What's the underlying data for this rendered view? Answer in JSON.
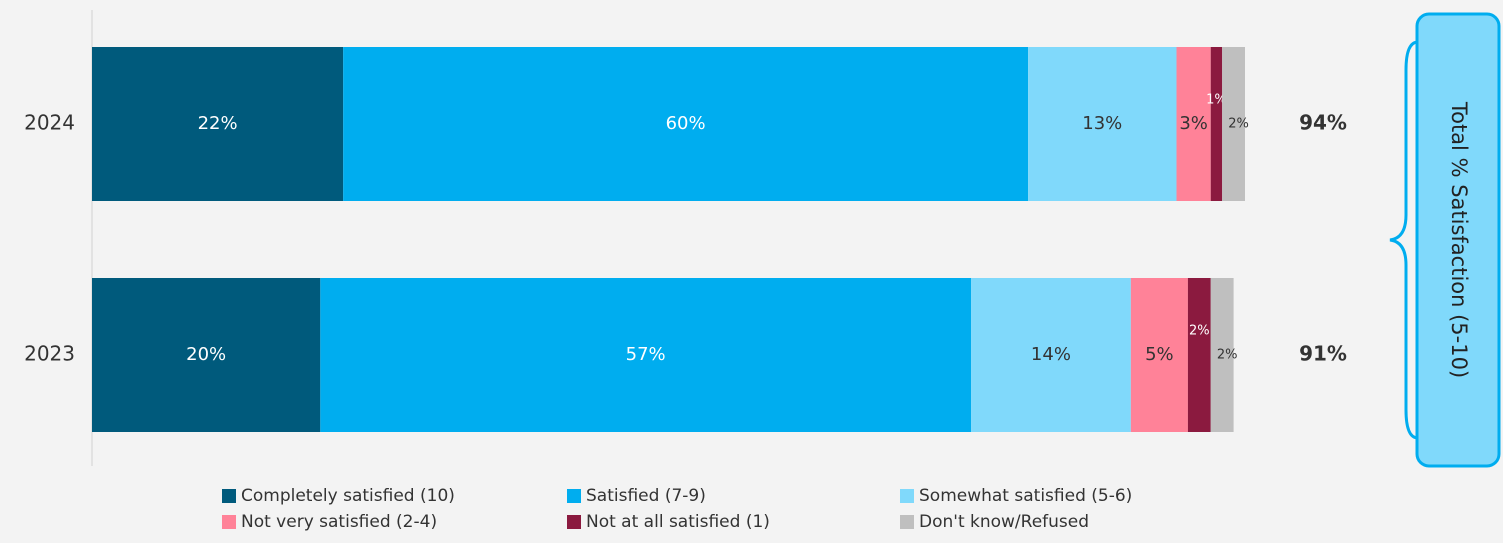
{
  "chart_data": {
    "type": "stacked-bar-horizontal",
    "categories": [
      "2024",
      "2023"
    ],
    "series": [
      {
        "name": "Completely satisfied (10)",
        "color": "#005a7c",
        "values": [
          22,
          20
        ],
        "value_labels": [
          "22%",
          "20%"
        ]
      },
      {
        "name": "Satisfied (7-9)",
        "color": "#00adef",
        "values": [
          60,
          57
        ],
        "value_labels": [
          "60%",
          "57%"
        ]
      },
      {
        "name": "Somewhat satisfied (5-6)",
        "color": "#80d9fb",
        "values": [
          13,
          14
        ],
        "value_labels": [
          "13%",
          "14%"
        ]
      },
      {
        "name": "Not very satisfied (2-4)",
        "color": "#ff8298",
        "values": [
          3,
          5
        ],
        "value_labels": [
          "3%",
          "5%"
        ]
      },
      {
        "name": "Not at all satisfied (1)",
        "color": "#8b1a3f",
        "values": [
          1,
          2
        ],
        "value_labels": [
          "1%",
          "2%"
        ]
      },
      {
        "name": "Don't know/Refused",
        "color": "#bfbfbf",
        "values": [
          2,
          2
        ],
        "value_labels": [
          "2%",
          "2%"
        ]
      }
    ],
    "totals": {
      "values": [
        94,
        91
      ],
      "value_labels": [
        "94%",
        "91%"
      ]
    },
    "bracket_label": "Total % Satisfaction (5-10)",
    "legend": "bottom"
  }
}
